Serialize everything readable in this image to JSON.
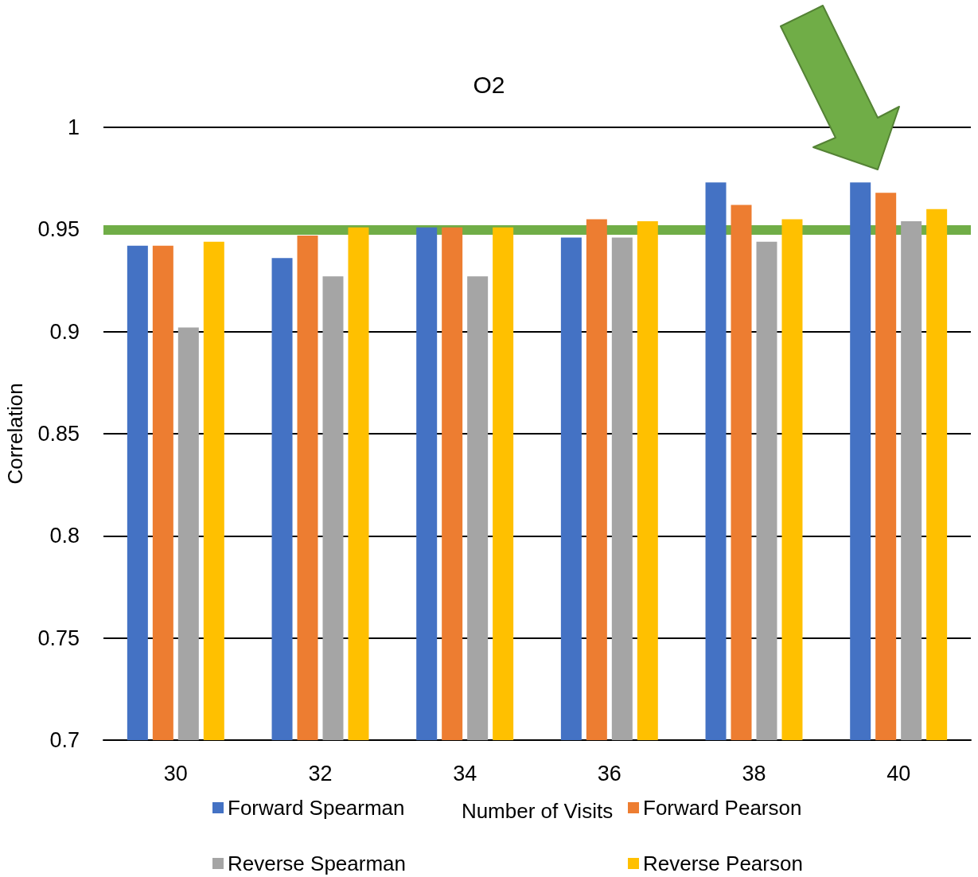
{
  "chart_data": {
    "type": "bar",
    "title": "O2",
    "xlabel": "Number of Visits",
    "ylabel": "Correlation",
    "categories": [
      "30",
      "32",
      "34",
      "36",
      "38",
      "40"
    ],
    "series": [
      {
        "name": "Forward Spearman",
        "color": "#4472c4",
        "values": [
          0.942,
          0.936,
          0.951,
          0.946,
          0.973,
          0.973
        ]
      },
      {
        "name": "Forward Pearson",
        "color": "#ed7d31",
        "values": [
          0.942,
          0.947,
          0.951,
          0.955,
          0.962,
          0.968
        ]
      },
      {
        "name": "Reverse Spearman",
        "color": "#a5a5a5",
        "values": [
          0.902,
          0.927,
          0.927,
          0.946,
          0.944,
          0.954
        ]
      },
      {
        "name": "Reverse Pearson",
        "color": "#ffc000",
        "values": [
          0.944,
          0.951,
          0.951,
          0.954,
          0.955,
          0.96
        ]
      }
    ],
    "ylim": [
      0.7,
      1
    ],
    "yticks": [
      0.7,
      0.75,
      0.8,
      0.85,
      0.9,
      0.95,
      1
    ],
    "ref_lines": [
      {
        "axis": "y",
        "value": 0.951,
        "color": "#70ad47"
      }
    ],
    "grid": "y",
    "legend": "bottom"
  }
}
